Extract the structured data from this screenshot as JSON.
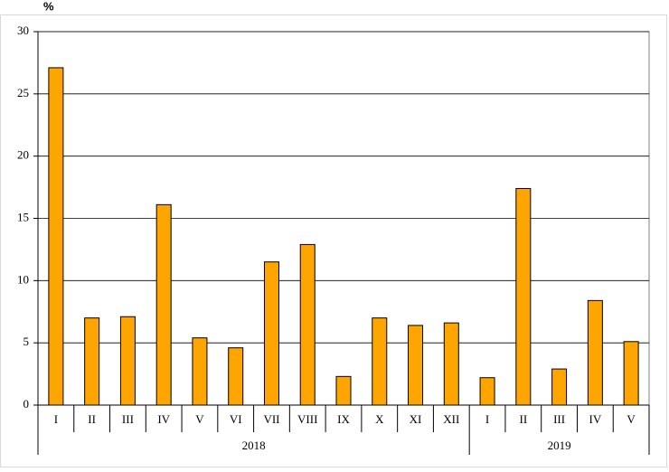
{
  "chart_data": {
    "type": "bar",
    "y_label": "%",
    "color": "#ffa500",
    "ylim": [
      0,
      30
    ],
    "yticks": [
      0,
      5,
      10,
      15,
      20,
      25,
      30
    ],
    "grid": true,
    "groups": [
      {
        "name": "2018",
        "categories": [
          "I",
          "II",
          "III",
          "IV",
          "V",
          "VI",
          "VII",
          "VIII",
          "IX",
          "X",
          "XI",
          "XII"
        ],
        "values": [
          27.1,
          7.0,
          7.1,
          16.1,
          5.4,
          4.6,
          11.5,
          12.9,
          2.3,
          7.0,
          6.4,
          6.6
        ]
      },
      {
        "name": "2019",
        "categories": [
          "I",
          "II",
          "III",
          "IV",
          "V"
        ],
        "values": [
          2.2,
          17.4,
          2.9,
          8.4,
          5.1
        ]
      }
    ]
  }
}
